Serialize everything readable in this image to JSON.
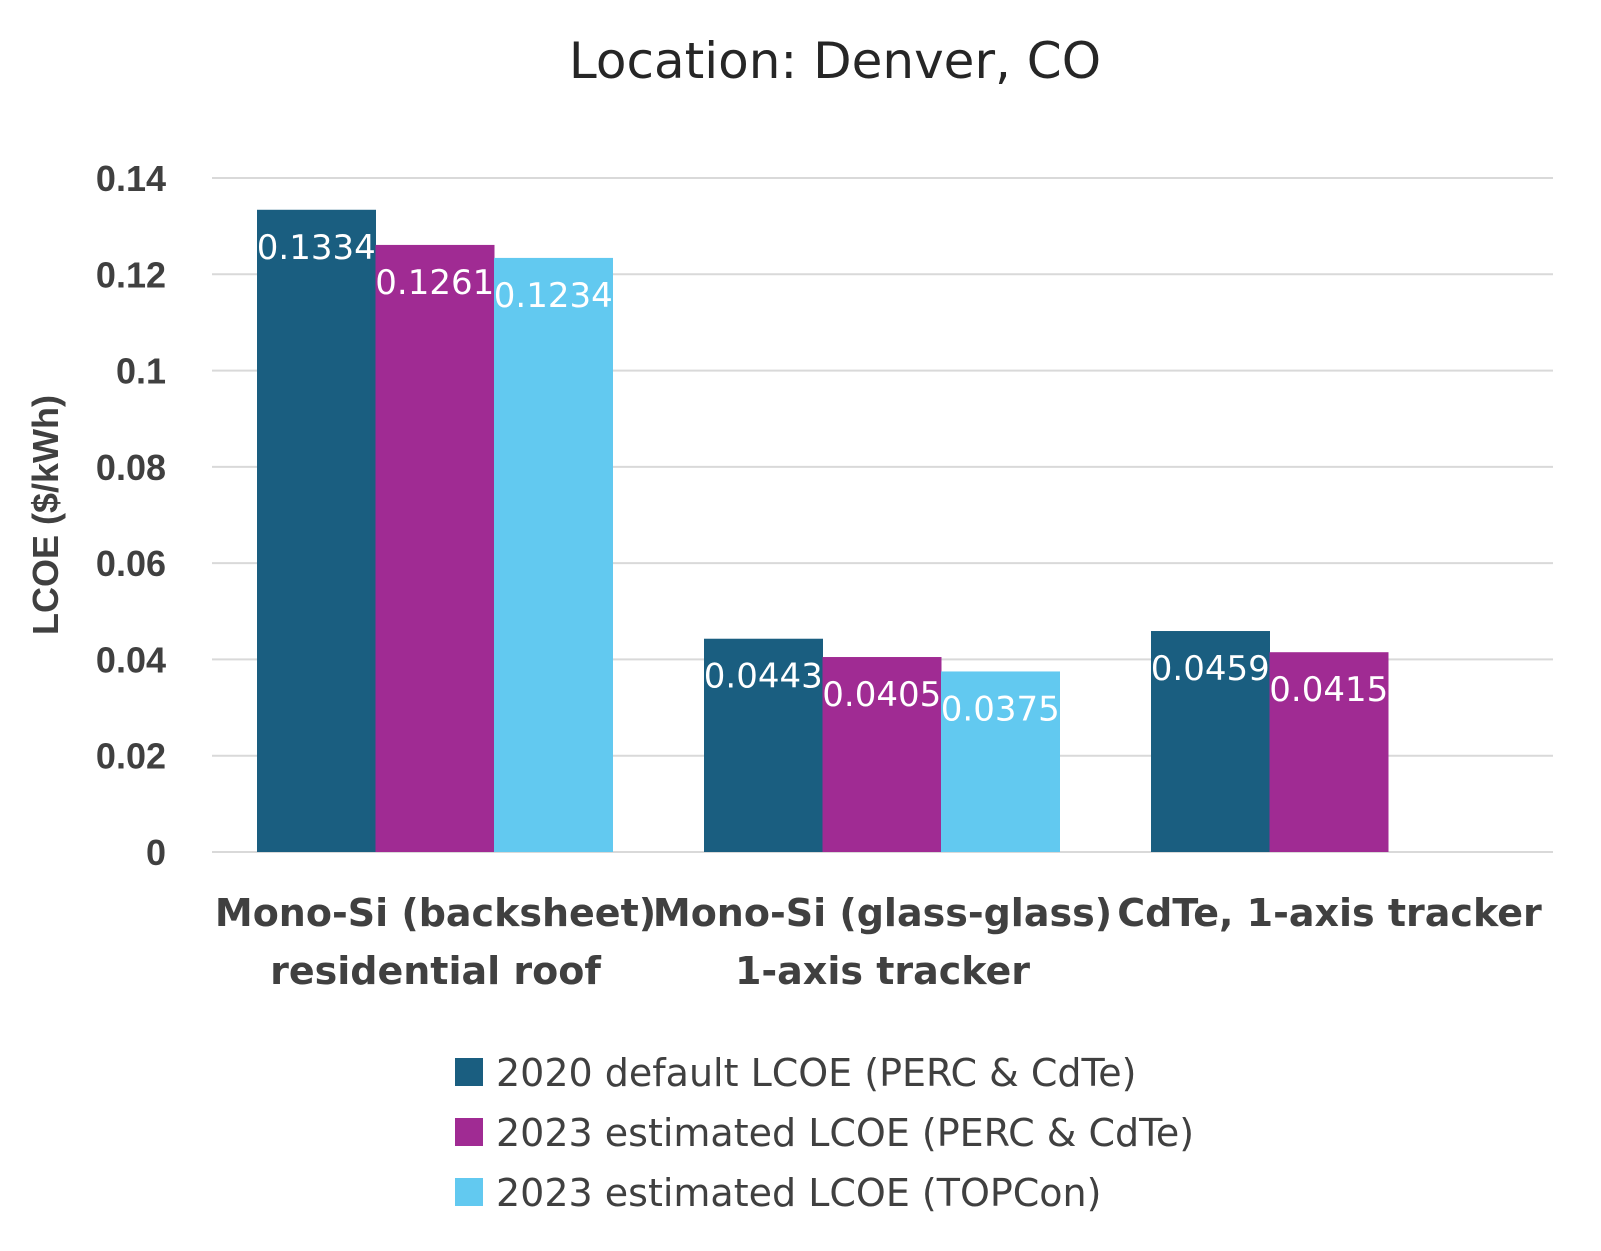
{
  "chart_data": {
    "type": "bar",
    "title": "Location: Denver, CO",
    "ylabel": "LCOE ($/kWh)",
    "xlabel": "",
    "ylim": [
      0,
      0.14
    ],
    "yticks": [
      0,
      0.02,
      0.04,
      0.06,
      0.08,
      0.1,
      0.12,
      0.14
    ],
    "ytick_labels": [
      "0",
      "0.02",
      "0.04",
      "0.06",
      "0.08",
      "0.1",
      "0.12",
      "0.14"
    ],
    "grid": true,
    "legend_position": "bottom",
    "categories": [
      [
        "Mono-Si (backsheet)",
        "residential roof"
      ],
      [
        "Mono-Si (glass-glass)",
        "1-axis tracker"
      ],
      [
        "CdTe, 1-axis tracker"
      ]
    ],
    "series": [
      {
        "name": "2020 default LCOE (PERC & CdTe)",
        "color": "#1a5e80",
        "values": [
          0.1334,
          0.0443,
          0.0459
        ],
        "labels": [
          "0.1334",
          "0.0443",
          "0.0459"
        ]
      },
      {
        "name": "2023 estimated LCOE (PERC & CdTe)",
        "color": "#a02b93",
        "values": [
          0.1261,
          0.0405,
          0.0415
        ],
        "labels": [
          "0.1261",
          "0.0405",
          "0.0415"
        ]
      },
      {
        "name": "2023 estimated LCOE (TOPCon)",
        "color": "#62c9f0",
        "values": [
          0.1234,
          0.0375,
          null
        ],
        "labels": [
          "0.1234",
          "0.0375",
          null
        ]
      }
    ]
  }
}
